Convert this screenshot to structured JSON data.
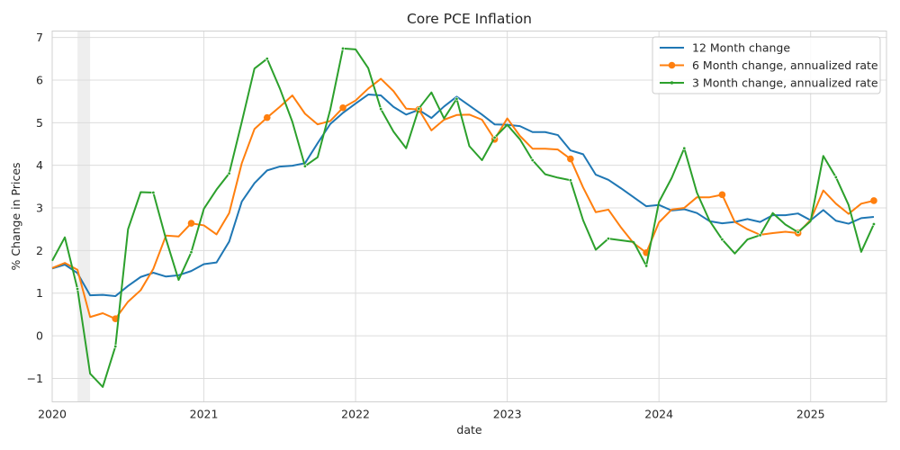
{
  "chart_data": {
    "type": "line",
    "title": "Core PCE Inflation",
    "xlabel": "date",
    "ylabel": "% Change in Prices",
    "x_start": "2020-01",
    "x_end": "2025-06",
    "xlim": [
      "2020-01",
      "2025-07"
    ],
    "ylim": [
      -1.55,
      7.15
    ],
    "x_ticks": [
      {
        "date": "2020-01",
        "label": "2020"
      },
      {
        "date": "2021-01",
        "label": "2021"
      },
      {
        "date": "2022-01",
        "label": "2022"
      },
      {
        "date": "2023-01",
        "label": "2023"
      },
      {
        "date": "2024-01",
        "label": "2024"
      },
      {
        "date": "2025-01",
        "label": "2025"
      }
    ],
    "y_ticks": [
      {
        "value": -1,
        "label": "−1"
      },
      {
        "value": 0,
        "label": "0"
      },
      {
        "value": 1,
        "label": "1"
      },
      {
        "value": 2,
        "label": "2"
      },
      {
        "value": 3,
        "label": "3"
      },
      {
        "value": 4,
        "label": "4"
      },
      {
        "value": 5,
        "label": "5"
      },
      {
        "value": 6,
        "label": "6"
      },
      {
        "value": 7,
        "label": "7"
      }
    ],
    "shaded_region": {
      "start": "2020-03",
      "end": "2020-04",
      "color": "#d9d9d9"
    },
    "grid": true,
    "legend_position": "top-right",
    "series": [
      {
        "name": "12 Month change",
        "color": "#1f77b4",
        "marker": "none",
        "values": [
          1.58,
          1.67,
          1.47,
          0.95,
          0.96,
          0.93,
          1.17,
          1.38,
          1.48,
          1.39,
          1.42,
          1.52,
          1.68,
          1.72,
          2.21,
          3.15,
          3.58,
          3.88,
          3.97,
          3.99,
          4.05,
          4.52,
          4.97,
          5.23,
          5.45,
          5.66,
          5.64,
          5.37,
          5.19,
          5.3,
          5.11,
          5.38,
          5.61,
          5.4,
          5.19,
          4.96,
          4.95,
          4.92,
          4.78,
          4.78,
          4.71,
          4.35,
          4.26,
          3.78,
          3.66,
          3.46,
          3.25,
          3.04,
          3.07,
          2.94,
          2.97,
          2.88,
          2.69,
          2.64,
          2.67,
          2.74,
          2.67,
          2.83,
          2.83,
          2.87,
          2.71,
          2.95,
          2.7,
          2.63,
          2.76,
          2.79
        ]
      },
      {
        "name": "6 Month change, annualized rate",
        "color": "#ff7f0e",
        "marker": "circle",
        "values": [
          1.59,
          1.71,
          1.55,
          0.44,
          0.53,
          0.4,
          0.8,
          1.07,
          1.57,
          2.35,
          2.33,
          2.64,
          2.59,
          2.38,
          2.88,
          4.05,
          4.85,
          5.12,
          5.37,
          5.64,
          5.21,
          4.96,
          5.04,
          5.35,
          5.52,
          5.8,
          6.03,
          5.74,
          5.33,
          5.31,
          4.82,
          5.07,
          5.18,
          5.19,
          5.07,
          4.61,
          5.1,
          4.69,
          4.39,
          4.39,
          4.37,
          4.15,
          3.48,
          2.9,
          2.96,
          2.54,
          2.17,
          1.95,
          2.66,
          2.96,
          3.0,
          3.25,
          3.25,
          3.31,
          2.67,
          2.5,
          2.37,
          2.41,
          2.44,
          2.41,
          2.72,
          3.41,
          3.1,
          2.86,
          3.1,
          3.17
        ]
      },
      {
        "name": "3 Month change, annualized rate",
        "color": "#2ca02c",
        "marker": "dot",
        "values": [
          1.76,
          2.31,
          1.1,
          -0.89,
          -1.2,
          -0.25,
          2.5,
          3.37,
          3.36,
          2.27,
          1.31,
          1.96,
          2.98,
          3.43,
          3.81,
          5.02,
          6.27,
          6.5,
          5.81,
          5.02,
          3.98,
          4.19,
          5.31,
          6.74,
          6.72,
          6.28,
          5.32,
          4.79,
          4.4,
          5.33,
          5.71,
          5.1,
          5.56,
          4.45,
          4.12,
          4.65,
          4.95,
          4.61,
          4.12,
          3.79,
          3.71,
          3.65,
          2.71,
          2.02,
          2.28,
          2.24,
          2.2,
          1.64,
          3.14,
          3.7,
          4.4,
          3.36,
          2.7,
          2.26,
          1.93,
          2.26,
          2.36,
          2.88,
          2.61,
          2.43,
          2.69,
          4.22,
          3.72,
          3.07,
          1.97,
          2.62
        ]
      }
    ]
  }
}
